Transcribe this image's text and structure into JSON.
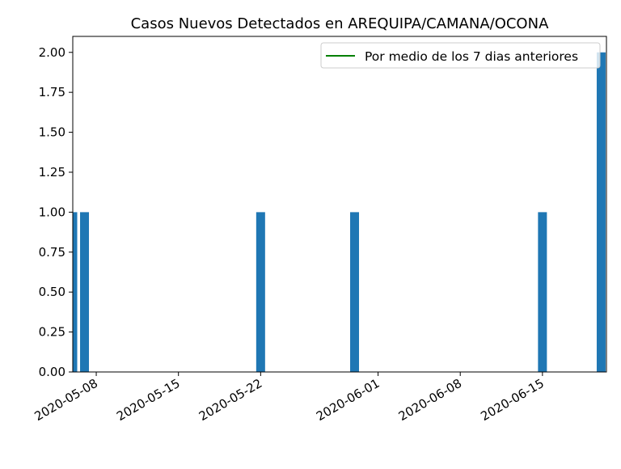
{
  "chart_data": {
    "type": "bar",
    "title": "Casos Nuevos Detectados en AREQUIPA/CAMANA/OCONA",
    "xlabel": "",
    "ylabel": "",
    "x_type": "date",
    "xlim": [
      "2020-05-06",
      "2020-06-20"
    ],
    "ylim": [
      0,
      2.1
    ],
    "yticks": [
      0,
      0.25,
      0.5,
      0.75,
      1.0,
      1.25,
      1.5,
      1.75,
      2.0
    ],
    "ytick_labels": [
      "0.00",
      "0.25",
      "0.50",
      "0.75",
      "1.00",
      "1.25",
      "1.50",
      "1.75",
      "2.00"
    ],
    "xticks": [
      "2020-05-08",
      "2020-05-15",
      "2020-05-22",
      "2020-06-01",
      "2020-06-08",
      "2020-06-15"
    ],
    "bar_color": "#1f77b4",
    "bars": [
      {
        "x": "2020-05-06",
        "y": 1
      },
      {
        "x": "2020-05-07",
        "y": 1
      },
      {
        "x": "2020-05-22",
        "y": 1
      },
      {
        "x": "2020-05-30",
        "y": 1
      },
      {
        "x": "2020-06-15",
        "y": 1
      },
      {
        "x": "2020-06-20",
        "y": 2
      }
    ],
    "series": [
      {
        "name": "Por medio de los 7 dias anteriores",
        "type": "line",
        "color": "#008000",
        "values": []
      }
    ],
    "legend": {
      "position": "top-right",
      "entries": [
        "Por medio de los 7 dias anteriores"
      ]
    },
    "grid": false
  }
}
